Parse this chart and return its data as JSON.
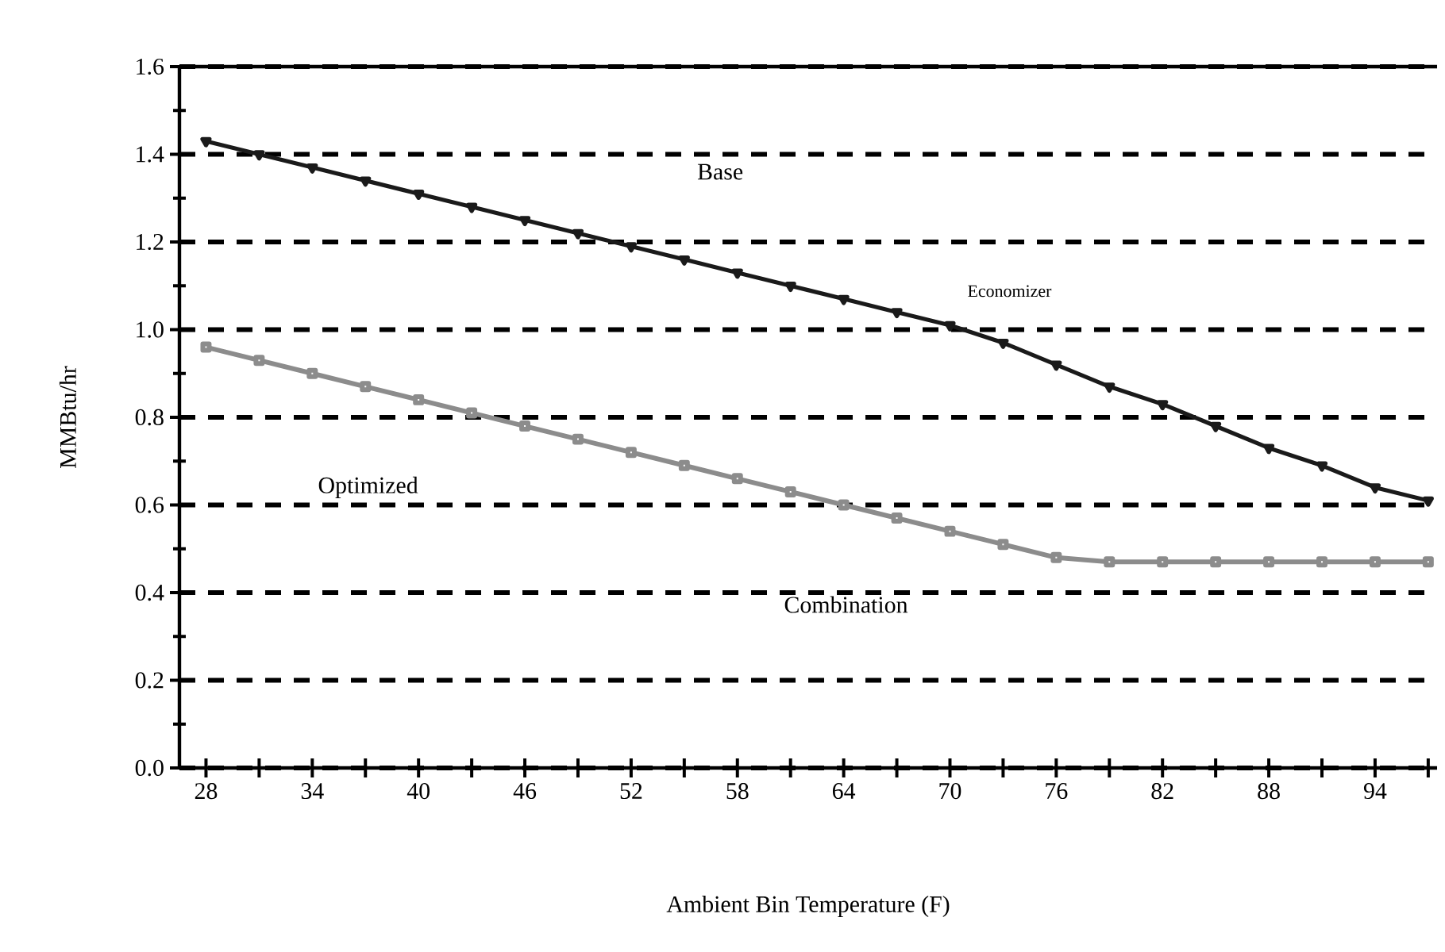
{
  "chart_data": {
    "type": "line",
    "xlabel": "Ambient Bin Temperature (F)",
    "ylabel": "MMBtu/hr",
    "x": [
      28,
      31,
      34,
      37,
      40,
      43,
      46,
      49,
      52,
      55,
      58,
      61,
      64,
      67,
      70,
      73,
      76,
      79,
      82,
      85,
      88,
      91,
      94,
      97
    ],
    "series": [
      {
        "color": "#1a1a1a",
        "marker": "triangle",
        "values": [
          1.43,
          1.4,
          1.37,
          1.34,
          1.31,
          1.28,
          1.25,
          1.22,
          1.19,
          1.16,
          1.13,
          1.1,
          1.07,
          1.04,
          1.01,
          0.97,
          0.92,
          0.87,
          0.83,
          0.78,
          0.73,
          0.69,
          0.64,
          0.61
        ]
      },
      {
        "color": "#8c8c8c",
        "marker": "square",
        "values": [
          0.96,
          0.93,
          0.9,
          0.87,
          0.84,
          0.81,
          0.78,
          0.75,
          0.72,
          0.69,
          0.66,
          0.63,
          0.6,
          0.57,
          0.54,
          0.51,
          0.48,
          0.47,
          0.47,
          0.47,
          0.47,
          0.47,
          0.47,
          0.47
        ]
      }
    ],
    "annotations": [
      "Base",
      "Economizer",
      "Optimized",
      "Combination"
    ],
    "xlim": [
      26.5,
      97.5
    ],
    "ylim": [
      0,
      1.6
    ],
    "xticks": [
      28,
      {
        "value": 31,
        "label": null
      },
      34,
      {
        "value": 37,
        "label": null
      },
      40,
      {
        "value": 43,
        "label": null
      },
      46,
      {
        "value": 49,
        "label": null
      },
      52,
      {
        "value": 55,
        "label": null
      },
      58,
      {
        "value": 61,
        "label": null
      },
      64,
      {
        "value": 67,
        "label": null
      },
      70,
      {
        "value": 73,
        "label": null
      },
      76,
      {
        "value": 79,
        "label": null
      },
      82,
      {
        "value": 85,
        "label": null
      },
      88,
      {
        "value": 91,
        "label": null
      },
      94,
      {
        "value": 97,
        "label": null
      }
    ],
    "yticks": [
      {
        "value": 0,
        "label": "0.0"
      },
      0.2,
      0.4,
      0.6,
      0.8,
      {
        "value": 1,
        "label": "1.0"
      },
      1.2,
      1.4,
      1.6
    ],
    "grid": "y",
    "line_style": "solid"
  }
}
